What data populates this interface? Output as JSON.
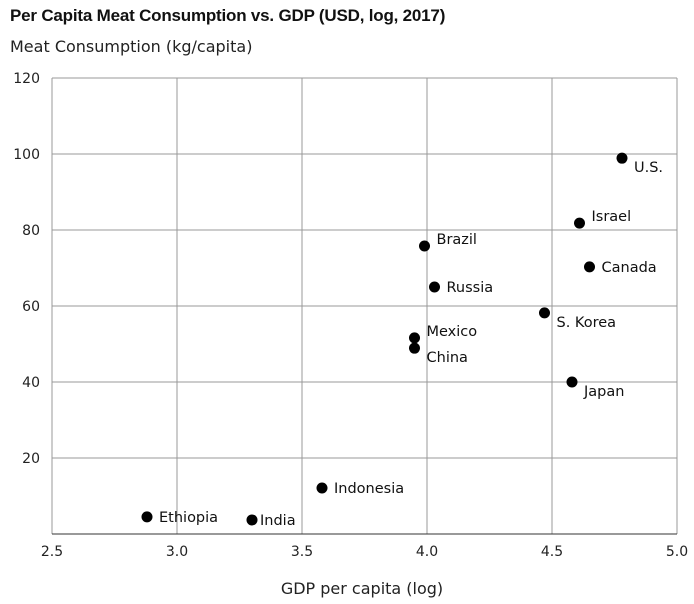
{
  "chart_data": {
    "type": "scatter",
    "title": "Per Capita Meat Consumption vs. GDP (USD, log, 2017)",
    "ylabel": "Meat Consumption (kg/capita)",
    "xlabel": "GDP per capita (log)",
    "xlim": [
      2.5,
      5.0
    ],
    "ylim": [
      0,
      120
    ],
    "xticks": [
      "2.5",
      "3.0",
      "3.5",
      "4.0",
      "4.5",
      "5.0"
    ],
    "yticks": [
      "20",
      "40",
      "60",
      "80",
      "100",
      "120"
    ],
    "grid": true,
    "marker_color": "#000000",
    "points": [
      {
        "label": "Ethiopia",
        "x": 2.88,
        "y": 4.5,
        "pos": "right"
      },
      {
        "label": "India",
        "x": 3.3,
        "y": 3.7,
        "pos": "right"
      },
      {
        "label": "Indonesia",
        "x": 3.58,
        "y": 12.1,
        "pos": "right"
      },
      {
        "label": "China",
        "x": 3.95,
        "y": 48.9,
        "pos": "below-right"
      },
      {
        "label": "Mexico",
        "x": 3.95,
        "y": 51.6,
        "pos": "above-right"
      },
      {
        "label": "Brazil",
        "x": 3.99,
        "y": 75.8,
        "pos": "above-right"
      },
      {
        "label": "Russia",
        "x": 4.03,
        "y": 65.0,
        "pos": "right"
      },
      {
        "label": "S. Korea",
        "x": 4.47,
        "y": 58.2,
        "pos": "below-right"
      },
      {
        "label": "Japan",
        "x": 4.58,
        "y": 40.0,
        "pos": "below-right"
      },
      {
        "label": "Israel",
        "x": 4.61,
        "y": 81.8,
        "pos": "above-right"
      },
      {
        "label": "Canada",
        "x": 4.65,
        "y": 70.3,
        "pos": "right"
      },
      {
        "label": "U.S.",
        "x": 4.78,
        "y": 98.9,
        "pos": "below-right"
      }
    ]
  }
}
